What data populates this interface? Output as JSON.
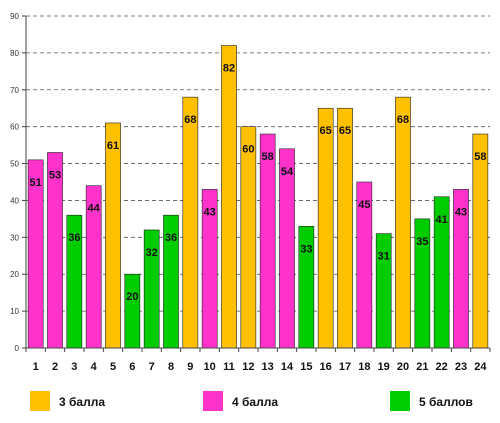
{
  "chart_data": {
    "type": "bar",
    "categories": [
      "1",
      "2",
      "3",
      "4",
      "5",
      "6",
      "7",
      "8",
      "9",
      "10",
      "11",
      "12",
      "13",
      "14",
      "15",
      "16",
      "17",
      "18",
      "19",
      "20",
      "21",
      "22",
      "23",
      "24"
    ],
    "values": [
      51,
      53,
      36,
      44,
      61,
      20,
      32,
      36,
      68,
      43,
      82,
      60,
      58,
      54,
      33,
      65,
      65,
      45,
      31,
      68,
      35,
      41,
      43,
      58
    ],
    "groups": [
      "4",
      "4",
      "5",
      "4",
      "3",
      "5",
      "5",
      "5",
      "3",
      "4",
      "3",
      "3",
      "4",
      "4",
      "5",
      "3",
      "3",
      "4",
      "5",
      "3",
      "5",
      "5",
      "4",
      "3"
    ],
    "ylim": [
      0,
      90
    ],
    "yticks": [
      0,
      10,
      20,
      30,
      40,
      50,
      60,
      70,
      80,
      90
    ],
    "grid": true,
    "legend_position": "bottom",
    "legend": [
      {
        "key": "3",
        "label": "3 балла",
        "color": "#FFC000"
      },
      {
        "key": "4",
        "label": "4 балла",
        "color": "#FF33CC"
      },
      {
        "key": "5",
        "label": "5 баллов",
        "color": "#00CC00"
      }
    ]
  }
}
